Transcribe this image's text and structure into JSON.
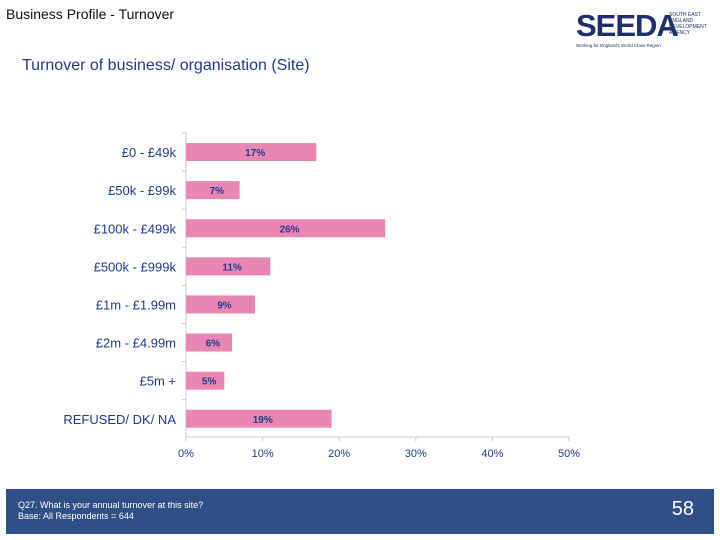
{
  "header": {
    "title": "Business Profile - Turnover"
  },
  "logo": {
    "wordmark": "SEEDA",
    "side_lines": [
      "SOUTH EAST",
      "ENGLAND",
      "DEVELOPMENT",
      "AGENCY"
    ],
    "tagline": "Working for England's World Class Region",
    "color": "#1e2f6b"
  },
  "chart_title": "Turnover of business/ organisation (Site)",
  "chart_data": {
    "type": "bar",
    "orientation": "horizontal",
    "categories": [
      "£0 - £49k",
      "£50k - £99k",
      "£100k - £499k",
      "£500k - £999k",
      "£1m - £1.99m",
      "£2m - £4.99m",
      "£5m +",
      "REFUSED/ DK/ NA"
    ],
    "values": [
      17,
      7,
      26,
      11,
      9,
      6,
      5,
      19
    ],
    "data_labels": [
      "17%",
      "7%",
      "26%",
      "11%",
      "9%",
      "6%",
      "5%",
      "19%"
    ],
    "xlim": [
      0,
      50
    ],
    "xticks": [
      "0%",
      "10%",
      "20%",
      "30%",
      "40%",
      "50%"
    ],
    "grid": false,
    "bar_color": "#e986b2",
    "label_color": "#1f3c8f"
  },
  "footer": {
    "lines": [
      "Q27. What is your annual turnover at this site?",
      "Base: All Respondents = 644"
    ],
    "page_number": "58",
    "background": "#2f4f86"
  }
}
